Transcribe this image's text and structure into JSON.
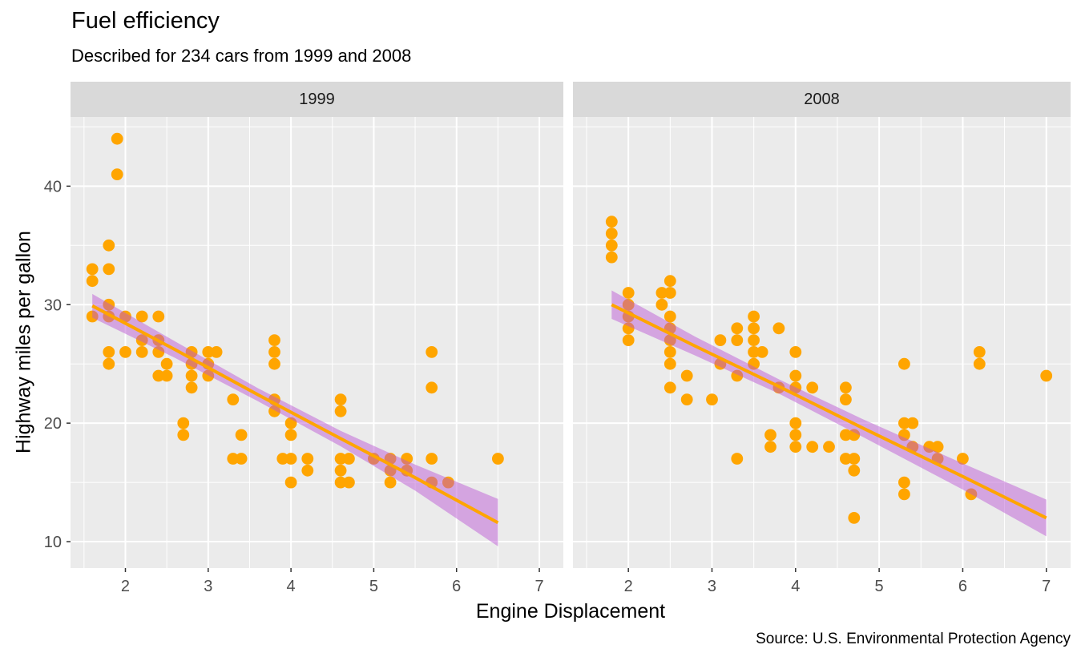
{
  "chart_data": {
    "type": "scatter",
    "title": "Fuel efficiency",
    "subtitle": "Described for 234 cars from 1999 and 2008",
    "xlabel": "Engine Displacement",
    "ylabel": "Highway miles per gallon",
    "caption": "Source: U.S. Environmental Protection Agency",
    "legend": "none",
    "grid": "on",
    "xlim": [
      1.337,
      7.29
    ],
    "ylim": [
      7.77,
      45.84
    ],
    "x_major_ticks": [
      2,
      3,
      4,
      5,
      6,
      7
    ],
    "x_minor_ticks": [
      1.5,
      2.5,
      3.5,
      4.5,
      5.5,
      6.5
    ],
    "y_major_ticks": [
      10,
      20,
      30,
      40
    ],
    "y_minor_ticks": [
      15,
      25,
      35,
      45
    ],
    "colors": {
      "point": "#FFA500",
      "line": "#FFA500",
      "ribbon": "#BA55D3",
      "ribbon_alpha": 0.48,
      "panel_bg": "#EBEBEB",
      "strip_bg": "#D9D9D9",
      "grid": "#FFFFFF",
      "tick_text": "#4D4D4D",
      "tick_mark": "#333333",
      "text": "#000000"
    },
    "facets": [
      {
        "label": "1999",
        "points": [
          [
            1.6,
            33
          ],
          [
            1.6,
            32
          ],
          [
            1.6,
            29
          ],
          [
            1.8,
            35
          ],
          [
            1.8,
            33
          ],
          [
            1.8,
            30
          ],
          [
            1.8,
            29
          ],
          [
            1.8,
            26
          ],
          [
            1.8,
            25
          ],
          [
            1.9,
            44
          ],
          [
            1.9,
            41
          ],
          [
            2.0,
            29
          ],
          [
            2.0,
            26
          ],
          [
            2.2,
            29
          ],
          [
            2.2,
            27
          ],
          [
            2.2,
            26
          ],
          [
            2.4,
            29
          ],
          [
            2.4,
            27
          ],
          [
            2.4,
            26
          ],
          [
            2.4,
            24
          ],
          [
            2.5,
            25
          ],
          [
            2.5,
            24
          ],
          [
            2.7,
            20
          ],
          [
            2.7,
            19
          ],
          [
            2.8,
            26
          ],
          [
            2.8,
            25
          ],
          [
            2.8,
            24
          ],
          [
            2.8,
            23
          ],
          [
            3.0,
            26
          ],
          [
            3.0,
            25
          ],
          [
            3.0,
            24
          ],
          [
            3.1,
            26
          ],
          [
            3.3,
            22
          ],
          [
            3.3,
            17
          ],
          [
            3.4,
            19
          ],
          [
            3.4,
            17
          ],
          [
            3.8,
            27
          ],
          [
            3.8,
            26
          ],
          [
            3.8,
            25
          ],
          [
            3.8,
            22
          ],
          [
            3.8,
            21
          ],
          [
            3.9,
            17
          ],
          [
            4.0,
            20
          ],
          [
            4.0,
            19
          ],
          [
            4.0,
            17
          ],
          [
            4.0,
            15
          ],
          [
            4.2,
            17
          ],
          [
            4.2,
            16
          ],
          [
            4.6,
            22
          ],
          [
            4.6,
            21
          ],
          [
            4.6,
            17
          ],
          [
            4.6,
            16
          ],
          [
            4.6,
            15
          ],
          [
            4.7,
            17
          ],
          [
            4.7,
            15
          ],
          [
            5.0,
            17
          ],
          [
            5.2,
            17
          ],
          [
            5.2,
            16
          ],
          [
            5.2,
            15
          ],
          [
            5.4,
            17
          ],
          [
            5.4,
            16
          ],
          [
            5.7,
            26
          ],
          [
            5.7,
            23
          ],
          [
            5.7,
            17
          ],
          [
            5.7,
            15
          ],
          [
            5.9,
            15
          ],
          [
            6.5,
            17
          ]
        ],
        "smooth": {
          "x": [
            1.6,
            2.6,
            3.6,
            4.6,
            5.5,
            6.5
          ],
          "fit": [
            29.9,
            26.2,
            22.4,
            18.7,
            15.4,
            11.6
          ],
          "lower": [
            28.9,
            25.5,
            21.85,
            18.05,
            14.3,
            9.6
          ],
          "upper": [
            30.9,
            26.9,
            22.95,
            19.35,
            16.5,
            13.6
          ]
        }
      },
      {
        "label": "2008",
        "points": [
          [
            1.8,
            37
          ],
          [
            1.8,
            36
          ],
          [
            1.8,
            35
          ],
          [
            1.8,
            34
          ],
          [
            2.0,
            31
          ],
          [
            2.0,
            30
          ],
          [
            2.0,
            29
          ],
          [
            2.0,
            28
          ],
          [
            2.0,
            27
          ],
          [
            2.4,
            31
          ],
          [
            2.4,
            30
          ],
          [
            2.5,
            32
          ],
          [
            2.5,
            31
          ],
          [
            2.5,
            29
          ],
          [
            2.5,
            28
          ],
          [
            2.5,
            27
          ],
          [
            2.5,
            26
          ],
          [
            2.5,
            25
          ],
          [
            2.5,
            23
          ],
          [
            2.7,
            24
          ],
          [
            2.7,
            22
          ],
          [
            3.0,
            22
          ],
          [
            3.1,
            27
          ],
          [
            3.1,
            25
          ],
          [
            3.3,
            28
          ],
          [
            3.3,
            27
          ],
          [
            3.3,
            24
          ],
          [
            3.3,
            17
          ],
          [
            3.5,
            29
          ],
          [
            3.5,
            28
          ],
          [
            3.5,
            27
          ],
          [
            3.5,
            26
          ],
          [
            3.5,
            25
          ],
          [
            3.6,
            26
          ],
          [
            3.7,
            19
          ],
          [
            3.7,
            18
          ],
          [
            3.8,
            28
          ],
          [
            3.8,
            23
          ],
          [
            4.0,
            26
          ],
          [
            4.0,
            24
          ],
          [
            4.0,
            23
          ],
          [
            4.0,
            20
          ],
          [
            4.0,
            19
          ],
          [
            4.0,
            18
          ],
          [
            4.2,
            23
          ],
          [
            4.2,
            18
          ],
          [
            4.4,
            18
          ],
          [
            4.6,
            23
          ],
          [
            4.6,
            22
          ],
          [
            4.6,
            19
          ],
          [
            4.6,
            17
          ],
          [
            4.7,
            19
          ],
          [
            4.7,
            17
          ],
          [
            4.7,
            16
          ],
          [
            4.7,
            12
          ],
          [
            5.3,
            25
          ],
          [
            5.3,
            20
          ],
          [
            5.3,
            19
          ],
          [
            5.3,
            15
          ],
          [
            5.3,
            14
          ],
          [
            5.4,
            20
          ],
          [
            5.4,
            18
          ],
          [
            5.6,
            18
          ],
          [
            5.7,
            18
          ],
          [
            5.7,
            17
          ],
          [
            6.0,
            17
          ],
          [
            6.1,
            14
          ],
          [
            6.2,
            26
          ],
          [
            6.2,
            25
          ],
          [
            7.0,
            24
          ]
        ],
        "smooth": {
          "x": [
            1.8,
            2.8,
            3.8,
            4.8,
            6.0,
            7.0
          ],
          "fit": [
            30.0,
            26.5,
            23.1,
            19.6,
            15.5,
            12.0
          ],
          "lower": [
            28.8,
            25.7,
            22.5,
            18.85,
            14.4,
            10.45
          ],
          "upper": [
            31.2,
            27.3,
            23.7,
            20.35,
            16.6,
            13.55
          ]
        }
      }
    ]
  }
}
